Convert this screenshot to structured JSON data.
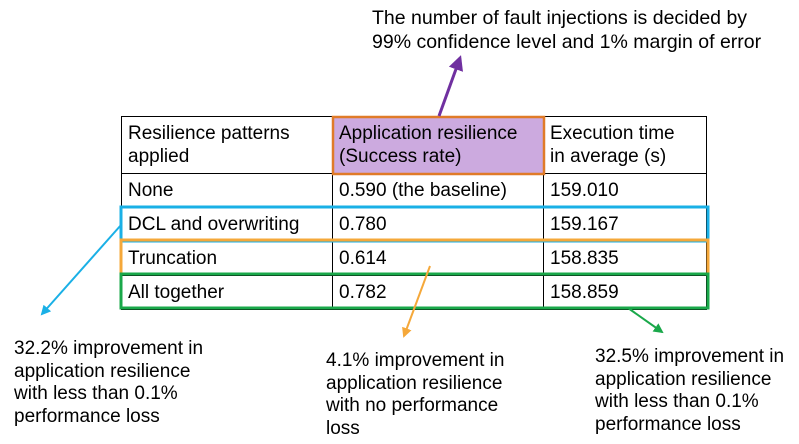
{
  "top_note": {
    "line1": "The number of fault injections is decided by",
    "line2": "99% confidence level and 1% margin of error"
  },
  "table": {
    "headers": [
      [
        "Resilience patterns",
        "applied"
      ],
      [
        "Application resilience",
        "(Success rate)"
      ],
      [
        "Execution time",
        "in average (s)"
      ]
    ],
    "rows": [
      [
        "None",
        "0.590 (the baseline)",
        "159.010"
      ],
      [
        "DCL and overwriting",
        "0.780",
        "159.167"
      ],
      [
        "Truncation",
        "0.614",
        "158.835"
      ],
      [
        "All together",
        "0.782",
        "158.859"
      ]
    ]
  },
  "annotations": {
    "left": [
      "32.2% improvement in",
      "application resilience",
      "with less than 0.1%",
      "performance loss"
    ],
    "middle": [
      "4.1% improvement in",
      "application resilience",
      "with no performance",
      "loss"
    ],
    "right": [
      "32.5% improvement in",
      "application resilience",
      "with less than 0.1%",
      "performance loss"
    ]
  },
  "colors": {
    "header_highlight_fill": "#ccaadf",
    "header_highlight_border": "#e07b28",
    "top_arrow": "#7030a0",
    "dcl_box": "#1ab0e6",
    "truncation_box": "#f5a83a",
    "all_together_box": "#1aa84a"
  }
}
